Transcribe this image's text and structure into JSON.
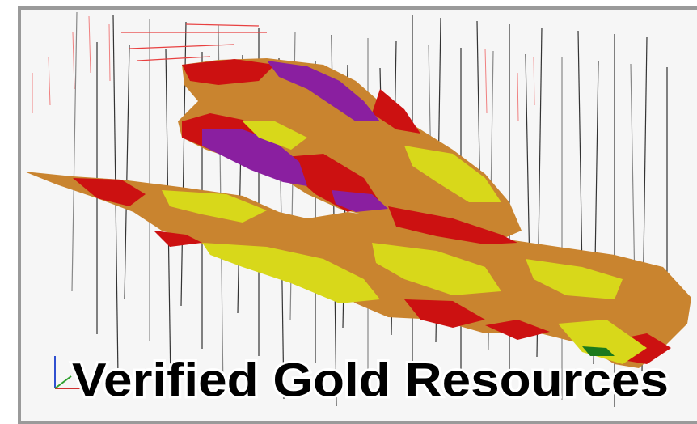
{
  "caption": "Verified Gold Resources"
}
